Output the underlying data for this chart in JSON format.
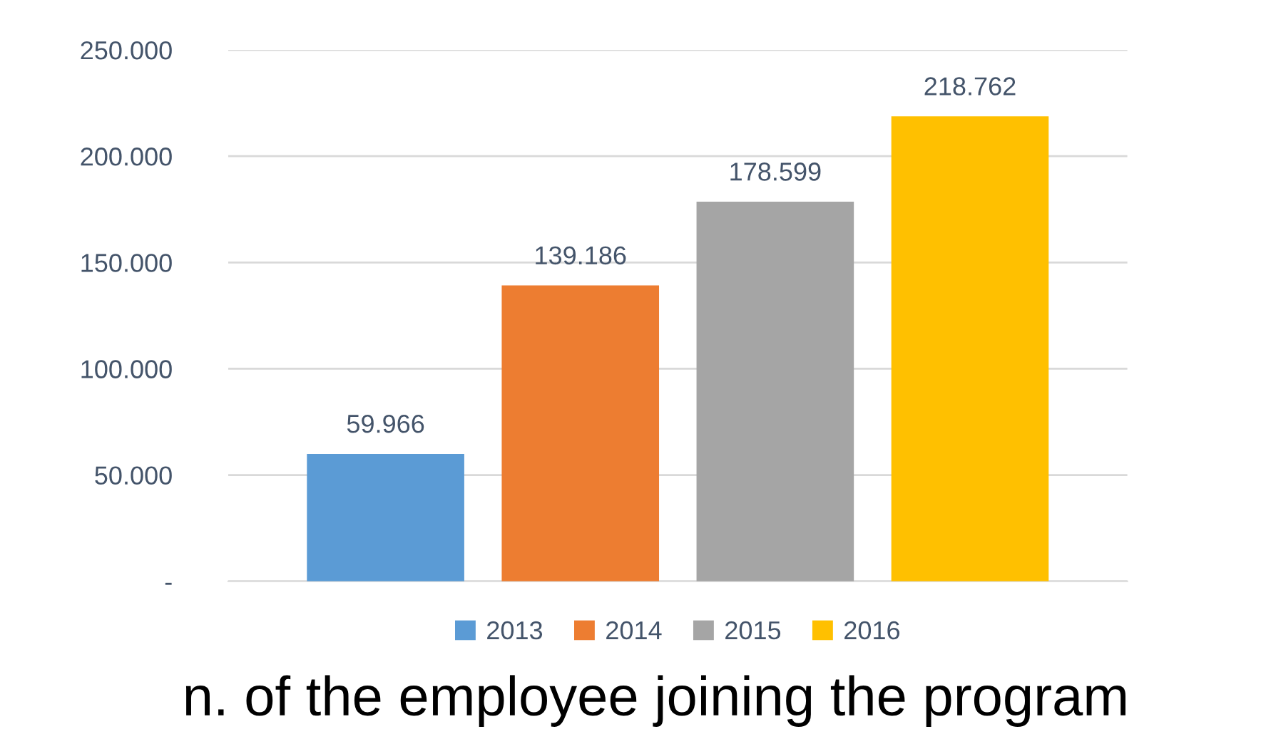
{
  "chart_data": {
    "type": "bar",
    "title": "n. of the employee joining the program",
    "categories": [
      null
    ],
    "series": [
      {
        "name": "2013",
        "color": "#5b9bd5",
        "values": [
          59966
        ],
        "value_labels": [
          "59.966"
        ]
      },
      {
        "name": "2014",
        "color": "#ed7d31",
        "values": [
          139186
        ],
        "value_labels": [
          "139.186"
        ]
      },
      {
        "name": "2015",
        "color": "#a5a5a5",
        "values": [
          178599
        ],
        "value_labels": [
          "178.599"
        ]
      },
      {
        "name": "2016",
        "color": "#ffc000",
        "values": [
          218762
        ],
        "value_labels": [
          "218.762"
        ]
      }
    ],
    "ylim": [
      0,
      250000
    ],
    "yticks": [
      {
        "value": 0,
        "label": "-"
      },
      {
        "value": 50000,
        "label": "50.000"
      },
      {
        "value": 100000,
        "label": "100.000"
      },
      {
        "value": 150000,
        "label": "150.000"
      },
      {
        "value": 200000,
        "label": "200.000"
      },
      {
        "value": 250000,
        "label": "250.000"
      }
    ],
    "grid": "y",
    "legend": "bottom"
  }
}
